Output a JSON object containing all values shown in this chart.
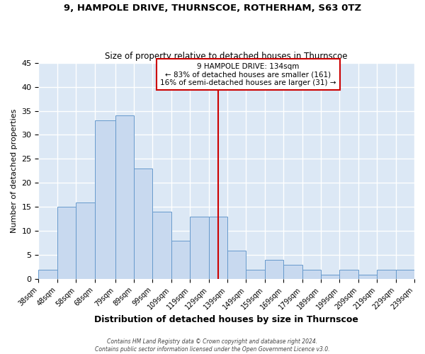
{
  "title": "9, HAMPOLE DRIVE, THURNSCOE, ROTHERHAM, S63 0TZ",
  "subtitle": "Size of property relative to detached houses in Thurnscoe",
  "xlabel": "Distribution of detached houses by size in Thurnscoe",
  "ylabel": "Number of detached properties",
  "bar_color": "#c8d9ef",
  "bar_edge_color": "#6699cc",
  "background_color": "#dce8f5",
  "grid_color": "#ffffff",
  "bin_edges": [
    38,
    48,
    58,
    68,
    79,
    89,
    99,
    109,
    119,
    129,
    139,
    149,
    159,
    169,
    179,
    189,
    199,
    209,
    219,
    229,
    239
  ],
  "bin_labels": [
    "38sqm",
    "48sqm",
    "58sqm",
    "68sqm",
    "79sqm",
    "89sqm",
    "99sqm",
    "109sqm",
    "119sqm",
    "129sqm",
    "139sqm",
    "149sqm",
    "159sqm",
    "169sqm",
    "179sqm",
    "189sqm",
    "199sqm",
    "209sqm",
    "219sqm",
    "229sqm",
    "239sqm"
  ],
  "counts": [
    2,
    15,
    16,
    33,
    34,
    23,
    14,
    8,
    13,
    13,
    6,
    2,
    4,
    3,
    2,
    1,
    2,
    1,
    2,
    2
  ],
  "ylim": [
    0,
    45
  ],
  "yticks": [
    0,
    5,
    10,
    15,
    20,
    25,
    30,
    35,
    40,
    45
  ],
  "vline_x": 134,
  "annotation_title": "9 HAMPOLE DRIVE: 134sqm",
  "annotation_line1": "← 83% of detached houses are smaller (161)",
  "annotation_line2": "16% of semi-detached houses are larger (31) →",
  "annotation_box_color": "#ffffff",
  "annotation_border_color": "#cc0000",
  "vline_color": "#cc0000",
  "footer_line1": "Contains HM Land Registry data © Crown copyright and database right 2024.",
  "footer_line2": "Contains public sector information licensed under the Open Government Licence v3.0."
}
